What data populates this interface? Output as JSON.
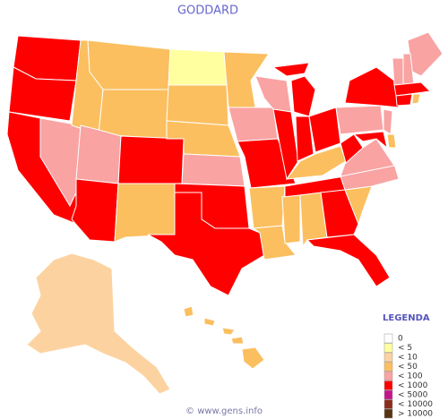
{
  "title": "GODDARD",
  "legend": {
    "title": "LEGENDA",
    "items": [
      {
        "label": "0",
        "color": "#ffffff"
      },
      {
        "label": "< 5",
        "color": "#ffffa0"
      },
      {
        "label": "< 10",
        "color": "#fcd3a0"
      },
      {
        "label": "< 50",
        "color": "#fbbf5f"
      },
      {
        "label": "< 100",
        "color": "#f9a3a3"
      },
      {
        "label": "< 1000",
        "color": "#ff0000"
      },
      {
        "label": "< 5000",
        "color": "#c4168c"
      },
      {
        "label": "< 10000",
        "color": "#8c2c1c"
      },
      {
        "label": "> 10000",
        "color": "#5a3310"
      }
    ]
  },
  "footer": "© www.gens.info"
}
